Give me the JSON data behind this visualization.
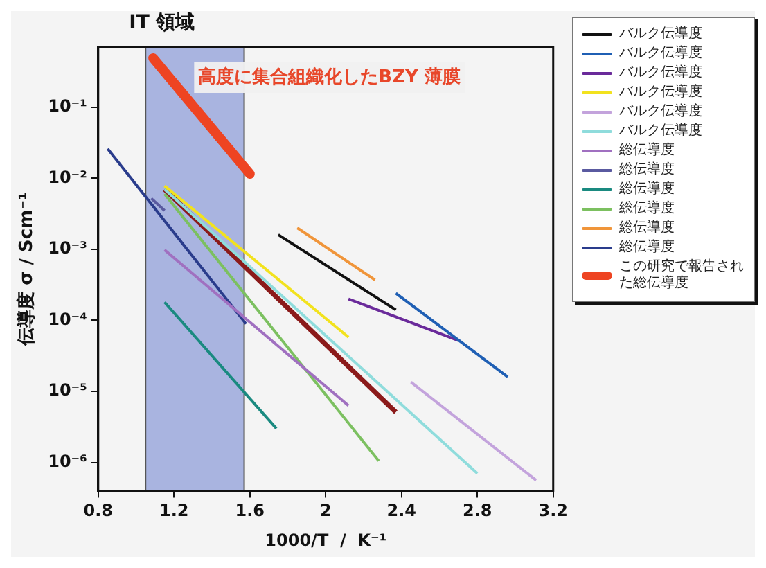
{
  "chart_data": {
    "type": "line",
    "xlabel": "1000/T  /  K⁻¹",
    "ylabel": "伝導度 σ / Scm⁻¹",
    "xlim": [
      0.8,
      3.2
    ],
    "xticks": [
      0.8,
      1.2,
      1.6,
      2.0,
      2.4,
      2.8,
      3.2
    ],
    "ylim": [
      4e-07,
      0.7
    ],
    "yticks": [
      {
        "value": 0.1,
        "label": "10⁻¹"
      },
      {
        "value": 0.01,
        "label": "10⁻²"
      },
      {
        "value": 0.001,
        "label": "10⁻³"
      },
      {
        "value": 0.0001,
        "label": "10⁻⁴"
      },
      {
        "value": 1e-05,
        "label": "10⁻⁵"
      },
      {
        "value": 1e-06,
        "label": "10⁻⁶"
      }
    ],
    "log": "y",
    "grid": false,
    "legend": "right",
    "marker": "none",
    "line_style": "solid",
    "bands": [
      {
        "axis": "x",
        "from": 1.05,
        "to": 1.57,
        "label": "IT 領域",
        "color": "#a9b4e0"
      }
    ],
    "annotations": [
      "高度に集合組織化したBZY 薄膜"
    ],
    "series": [
      {
        "name": "バルク伝導度",
        "color": "#111111",
        "x": [
          1.75,
          2.37
        ],
        "values": [
          0.0016,
          0.00014
        ]
      },
      {
        "name": "バルク伝導度",
        "color": "#1f5fb4",
        "x": [
          2.37,
          2.96
        ],
        "values": [
          0.00024,
          1.6e-05
        ]
      },
      {
        "name": "バルク伝導度",
        "color": "#6a2a9a",
        "x": [
          2.12,
          2.7
        ],
        "values": [
          0.0002,
          5.2e-05
        ]
      },
      {
        "name": "バルク伝導度",
        "color": "#f2e21e",
        "x": [
          1.15,
          2.12
        ],
        "values": [
          0.0078,
          5.8e-05
        ]
      },
      {
        "name": "バルク伝導度",
        "color": "#c3a3dc",
        "x": [
          2.45,
          3.11
        ],
        "values": [
          1.35e-05,
          5.6e-07
        ]
      },
      {
        "name": "バルク伝導度",
        "color": "#8fdcdc",
        "x": [
          1.15,
          2.8
        ],
        "values": [
          0.007,
          7e-07
        ]
      },
      {
        "name": "総伝導度",
        "color": "#a070c0",
        "x": [
          1.15,
          2.12
        ],
        "values": [
          0.00098,
          6.3e-06
        ]
      },
      {
        "name": "総伝導度",
        "color": "#5a5aa0",
        "x": [
          1.08,
          1.15
        ],
        "values": [
          0.0052,
          0.0035
        ]
      },
      {
        "name": "総伝導度",
        "color": "#1a8a80",
        "x": [
          1.15,
          1.74
        ],
        "values": [
          0.00018,
          3e-06
        ]
      },
      {
        "name": "総伝導度",
        "color": "#7cc060",
        "x": [
          1.15,
          2.28
        ],
        "values": [
          0.006,
          1.05e-06
        ]
      },
      {
        "name": "総伝導度",
        "color": "#f0953a",
        "x": [
          1.85,
          2.26
        ],
        "values": [
          0.002,
          0.00037
        ]
      },
      {
        "name": "総伝導度",
        "color": "#2a3c8c",
        "x": [
          0.85,
          1.58
        ],
        "values": [
          0.026,
          8.9e-05
        ]
      },
      {
        "name": "この研究で報告された総伝導度",
        "color": "#ee4422",
        "x": [
          1.09,
          1.6
        ],
        "values": [
          0.49,
          0.0115
        ]
      },
      {
        "color": "#8b1a1a",
        "x": [
          1.15,
          2.37
        ],
        "values": [
          0.007,
          5.1e-06
        ]
      }
    ]
  }
}
